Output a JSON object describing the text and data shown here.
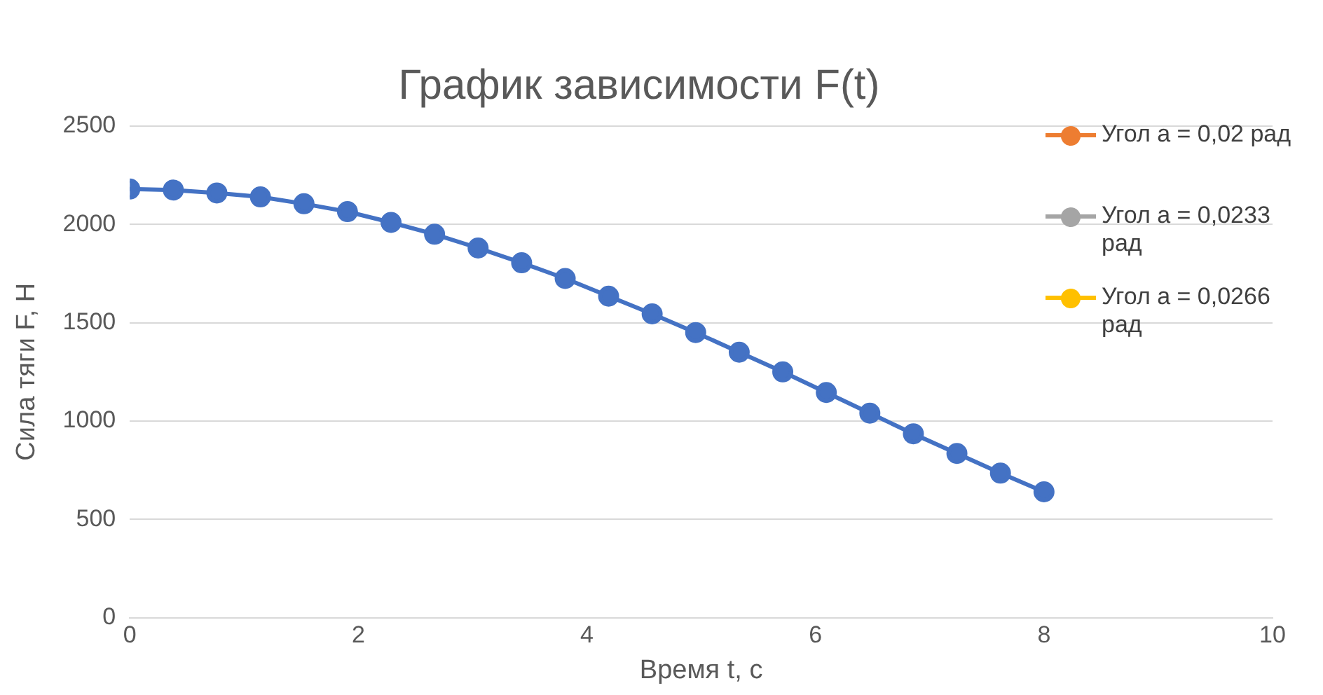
{
  "chart_data": {
    "type": "line",
    "title": "График зависимости F(t)",
    "xlabel": "Время t, с",
    "ylabel": "Сила тяги F, Н",
    "x": [
      0,
      0.381,
      0.762,
      1.143,
      1.524,
      1.905,
      2.286,
      2.667,
      3.048,
      3.429,
      3.81,
      4.19,
      4.571,
      4.952,
      5.333,
      5.714,
      6.095,
      6.476,
      6.857,
      7.238,
      7.619,
      8
    ],
    "series": [
      {
        "name": "Угол а = 0,02 рад",
        "color": "#ed7d31",
        "values": [
          null,
          null,
          null,
          null,
          null,
          null,
          null,
          null,
          null,
          null,
          null,
          null,
          null,
          null,
          null,
          null,
          null,
          null,
          null,
          null,
          null,
          null
        ]
      },
      {
        "name": "Угол а = 0,0233 рад",
        "color": "#a5a5a5",
        "values": [
          null,
          null,
          null,
          null,
          null,
          null,
          null,
          null,
          null,
          null,
          null,
          null,
          null,
          null,
          null,
          null,
          null,
          null,
          null,
          null,
          null,
          null
        ]
      },
      {
        "name": "Угол а = 0,0266 рад",
        "color": "#ffc000",
        "values": [
          null,
          null,
          null,
          null,
          null,
          null,
          null,
          null,
          null,
          null,
          null,
          null,
          null,
          null,
          null,
          null,
          null,
          null,
          null,
          null,
          null,
          null
        ]
      },
      {
        "color": "#4472c4",
        "values": [
          2180,
          2175,
          2160,
          2140,
          2105,
          2065,
          2010,
          1950,
          1880,
          1805,
          1725,
          1635,
          1545,
          1450,
          1350,
          1250,
          1145,
          1040,
          935,
          835,
          735,
          640
        ]
      }
    ],
    "xlim": [
      0,
      10
    ],
    "xticks": [
      0,
      2,
      4,
      6,
      8,
      10
    ],
    "ylim": [
      0,
      2500
    ],
    "yticks": [
      0,
      500,
      1000,
      1500,
      2000,
      2500
    ],
    "grid": "y",
    "legend": "top right",
    "marker": "circle",
    "line_style": "solid"
  }
}
